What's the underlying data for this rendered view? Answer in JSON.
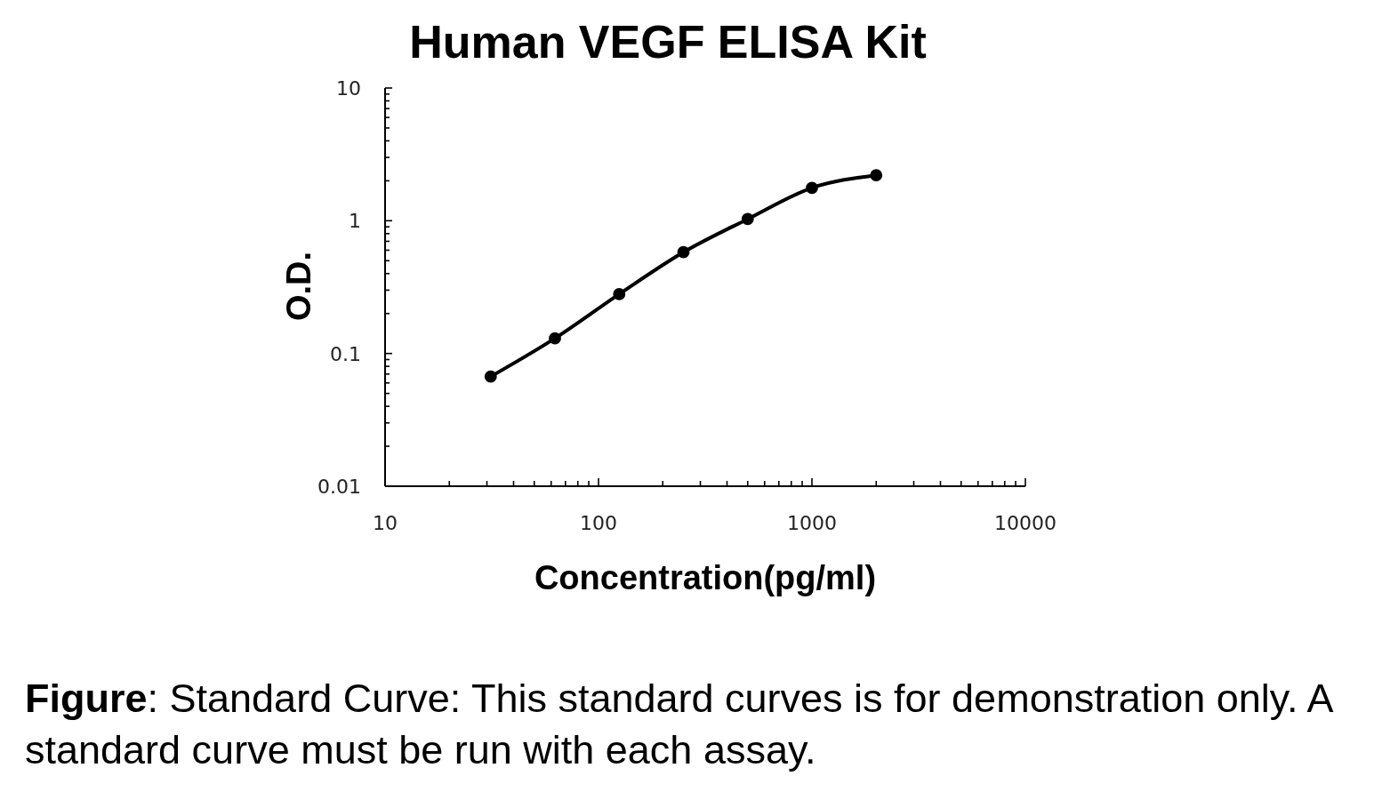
{
  "chart_data": {
    "type": "line",
    "title": "Human VEGF ELISA Kit",
    "xlabel": "Concentration(pg/ml)",
    "ylabel": "O.D.",
    "annotations": [
      "Figure: Standard Curve: This standard curves is for demonstration only. A standard curve must be run with each assay."
    ],
    "x": [
      31.25,
      62.5,
      125,
      250,
      500,
      1000,
      2000
    ],
    "series": [
      {
        "color": "#000000",
        "values": [
          0.067,
          0.13,
          0.28,
          0.58,
          1.03,
          1.77,
          2.2
        ]
      }
    ],
    "log": "xy",
    "xlim": [
      10,
      10000
    ],
    "ylim": [
      0.01,
      10
    ],
    "xticks": [
      10,
      {
        "value": 20,
        "label": null
      },
      {
        "value": 30,
        "label": null
      },
      {
        "value": 40,
        "label": null
      },
      {
        "value": 50,
        "label": null
      },
      {
        "value": 60,
        "label": null
      },
      {
        "value": 70,
        "label": null
      },
      {
        "value": 80,
        "label": null
      },
      {
        "value": 90,
        "label": null
      },
      100,
      {
        "value": 200,
        "label": null
      },
      {
        "value": 300,
        "label": null
      },
      {
        "value": 400,
        "label": null
      },
      {
        "value": 500,
        "label": null
      },
      {
        "value": 600,
        "label": null
      },
      {
        "value": 700,
        "label": null
      },
      {
        "value": 800,
        "label": null
      },
      {
        "value": 900,
        "label": null
      },
      1000,
      {
        "value": 2000,
        "label": null
      },
      {
        "value": 3000,
        "label": null
      },
      {
        "value": 4000,
        "label": null
      },
      {
        "value": 5000,
        "label": null
      },
      {
        "value": 6000,
        "label": null
      },
      {
        "value": 7000,
        "label": null
      },
      {
        "value": 8000,
        "label": null
      },
      {
        "value": 9000,
        "label": null
      },
      10000
    ],
    "yticks": [
      0.01,
      {
        "value": 0.02,
        "label": null
      },
      {
        "value": 0.03,
        "label": null
      },
      {
        "value": 0.04,
        "label": null
      },
      {
        "value": 0.05,
        "label": null
      },
      {
        "value": 0.06,
        "label": null
      },
      {
        "value": 0.07,
        "label": null
      },
      {
        "value": 0.08,
        "label": null
      },
      {
        "value": 0.09,
        "label": null
      },
      0.1,
      {
        "value": 0.2,
        "label": null
      },
      {
        "value": 0.3,
        "label": null
      },
      {
        "value": 0.4,
        "label": null
      },
      {
        "value": 0.5,
        "label": null
      },
      {
        "value": 0.6,
        "label": null
      },
      {
        "value": 0.7,
        "label": null
      },
      {
        "value": 0.8,
        "label": null
      },
      {
        "value": 0.9,
        "label": null
      },
      1,
      {
        "value": 2,
        "label": null
      },
      {
        "value": 3,
        "label": null
      },
      {
        "value": 4,
        "label": null
      },
      {
        "value": 5,
        "label": null
      },
      {
        "value": 6,
        "label": null
      },
      {
        "value": 7,
        "label": null
      },
      {
        "value": 8,
        "label": null
      },
      {
        "value": 9,
        "label": null
      },
      10
    ],
    "marker": "circle",
    "line_style": "solid"
  }
}
